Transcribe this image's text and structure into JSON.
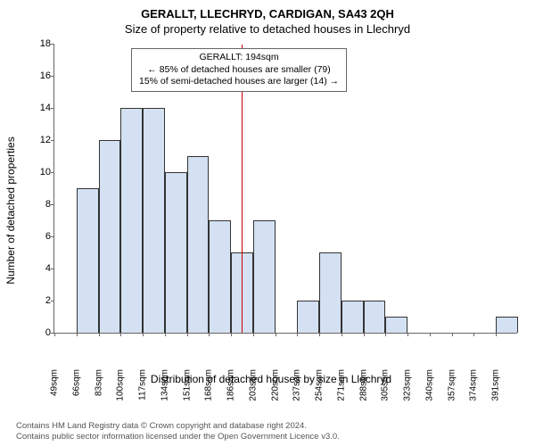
{
  "title_main": "GERALLT, LLECHRYD, CARDIGAN, SA43 2QH",
  "title_sub": "Size of property relative to detached houses in Llechryd",
  "ylabel": "Number of detached properties",
  "xlabel": "Distribution of detached houses by size in Llechryd",
  "chart": {
    "type": "histogram",
    "yticks": [
      0,
      2,
      4,
      6,
      8,
      10,
      12,
      14,
      16,
      18
    ],
    "ymax": 18,
    "xlabels": [
      "49sqm",
      "66sqm",
      "83sqm",
      "100sqm",
      "117sqm",
      "134sqm",
      "151sqm",
      "168sqm",
      "186sqm",
      "203sqm",
      "220sqm",
      "237sqm",
      "254sqm",
      "271sqm",
      "288sqm",
      "305sqm",
      "323sqm",
      "340sqm",
      "357sqm",
      "374sqm",
      "391sqm"
    ],
    "values": [
      0,
      9,
      12,
      14,
      14,
      10,
      11,
      7,
      5,
      7,
      0,
      2,
      5,
      2,
      2,
      1,
      0,
      0,
      0,
      0,
      1
    ],
    "bar_fill": "#d3e1f2",
    "bar_stroke": "#333333",
    "vline_color": "#cc0000",
    "vline_x_index": 8.5,
    "background": "#ffffff"
  },
  "annotation": {
    "line1": "GERALLT: 194sqm",
    "line2": "← 85% of detached houses are smaller (79)",
    "line3": "15% of semi-detached houses are larger (14) →"
  },
  "footer_line1": "Contains HM Land Registry data © Crown copyright and database right 2024.",
  "footer_line2": "Contains public sector information licensed under the Open Government Licence v3.0."
}
